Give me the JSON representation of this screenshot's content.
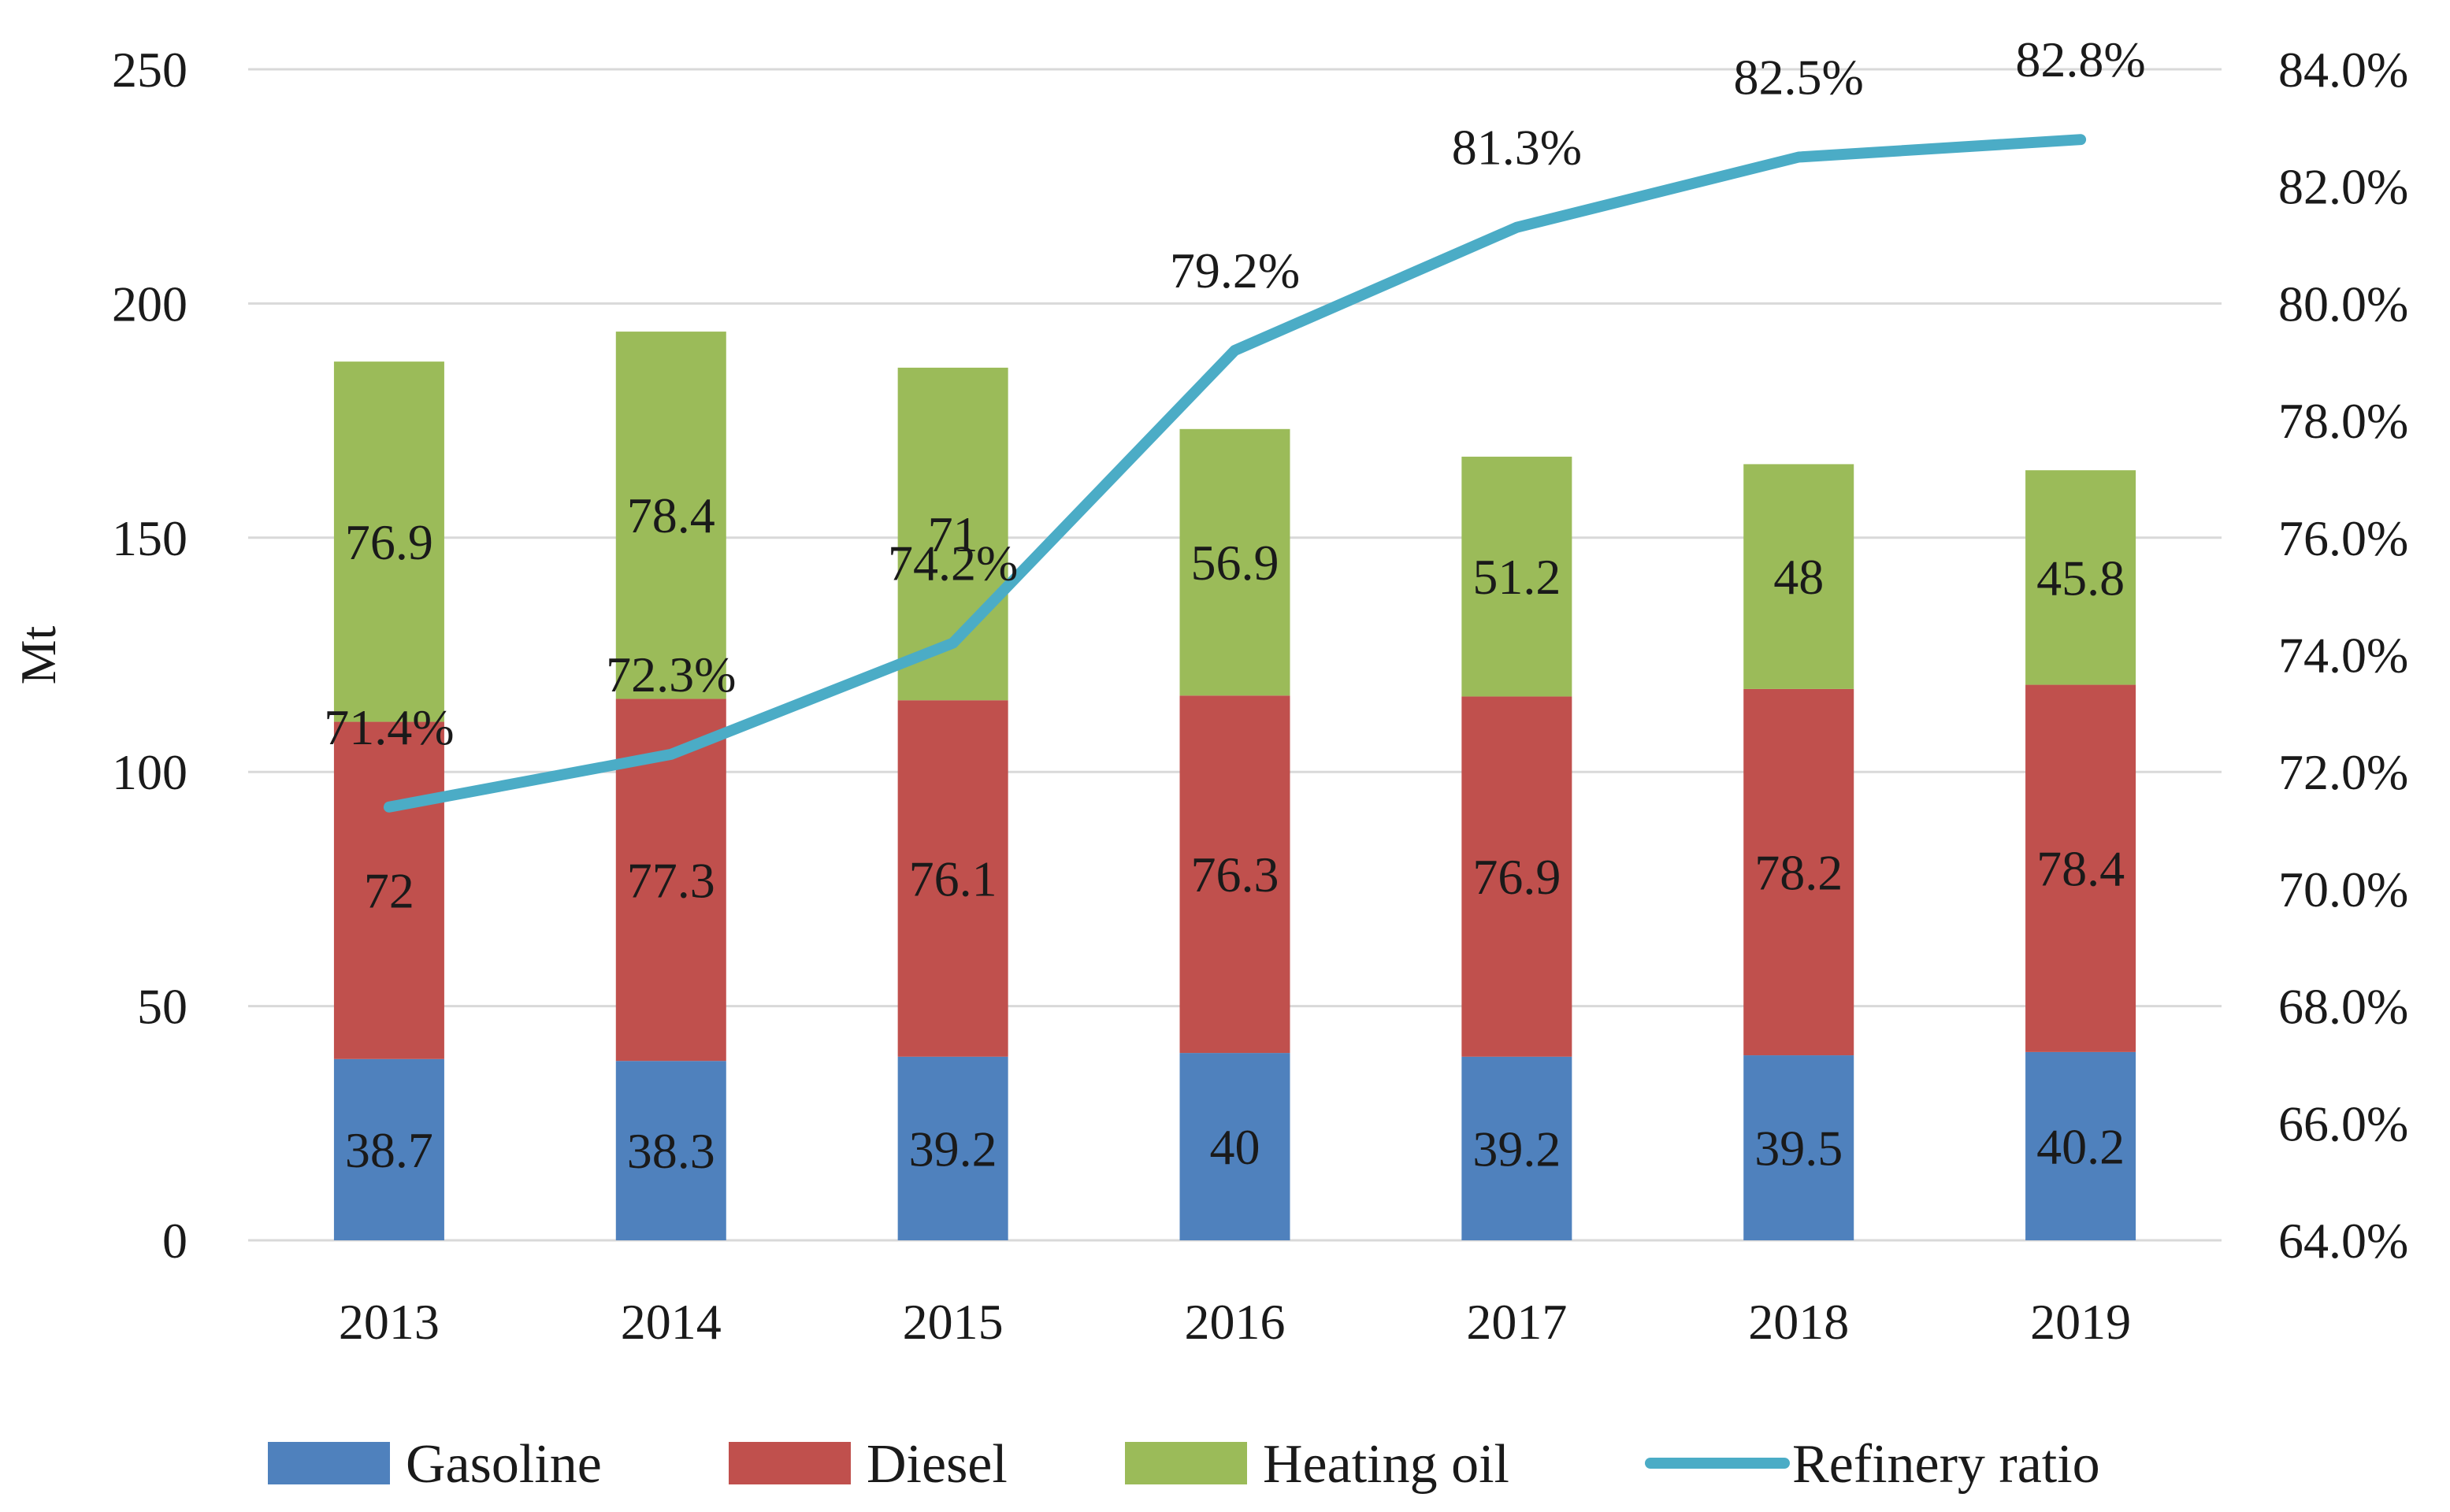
{
  "chart_data": {
    "type": "bar",
    "stacked": true,
    "categories": [
      "2013",
      "2014",
      "2015",
      "2016",
      "2017",
      "2018",
      "2019"
    ],
    "series": [
      {
        "name": "Gasoline",
        "color": "#4f81bd",
        "values": [
          38.7,
          38.3,
          39.2,
          40,
          39.2,
          39.5,
          40.2
        ],
        "labels": [
          "38.7",
          "38.3",
          "39.2",
          "40",
          "39.2",
          "39.5",
          "40.2"
        ]
      },
      {
        "name": "Diesel",
        "color": "#c0504d",
        "values": [
          72,
          77.3,
          76.1,
          76.3,
          76.9,
          78.2,
          78.4
        ],
        "labels": [
          "72",
          "77.3",
          "76.1",
          "76.3",
          "76.9",
          "78.2",
          "78.4"
        ]
      },
      {
        "name": "Heating oil",
        "color": "#9bbb59",
        "values": [
          76.9,
          78.4,
          71,
          56.9,
          51.2,
          48,
          45.8
        ],
        "labels": [
          "76.9",
          "78.4",
          "71",
          "56.9",
          "51.2",
          "48",
          "45.8"
        ]
      }
    ],
    "line_series": {
      "name": "Refinery ratio",
      "color": "#4bacc6",
      "axis": "right",
      "values": [
        71.4,
        72.3,
        74.2,
        79.2,
        81.3,
        82.5,
        82.8
      ],
      "labels": [
        "71.4%",
        "72.3%",
        "74.2%",
        "79.2%",
        "81.3%",
        "82.5%",
        "82.8%"
      ]
    },
    "ylabel": "Mt",
    "ylim": [
      0,
      250
    ],
    "y_ticks": [
      "0",
      "50",
      "100",
      "150",
      "200",
      "250"
    ],
    "y2lim": [
      64,
      84
    ],
    "y2_ticks": [
      "64.0%",
      "66.0%",
      "68.0%",
      "70.0%",
      "72.0%",
      "74.0%",
      "76.0%",
      "78.0%",
      "80.0%",
      "82.0%",
      "84.0%"
    ],
    "grid": true,
    "legend_position": "bottom",
    "legend": [
      "Gasoline",
      "Diesel",
      "Heating oil",
      "Refinery ratio"
    ]
  }
}
